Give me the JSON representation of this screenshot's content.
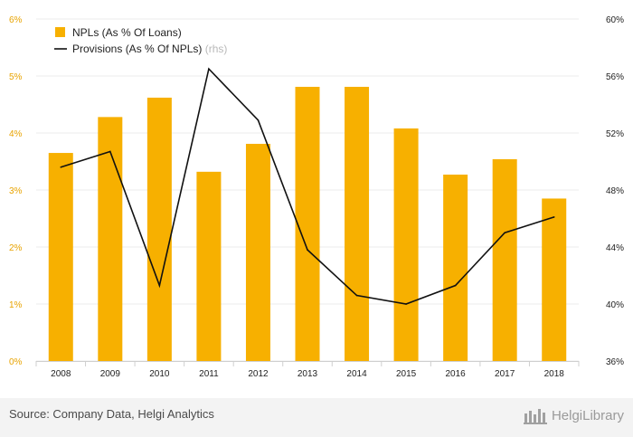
{
  "chart_data": {
    "type": "bar+line",
    "categories": [
      "2008",
      "2009",
      "2010",
      "2011",
      "2012",
      "2013",
      "2014",
      "2015",
      "2016",
      "2017",
      "2018"
    ],
    "series": [
      {
        "name": "NPLs (As % Of Loans)",
        "type": "bar",
        "axis": "left",
        "values": [
          3.65,
          4.28,
          4.62,
          3.32,
          3.81,
          4.81,
          4.81,
          4.08,
          3.27,
          3.54,
          2.85
        ],
        "color": "#f7b000"
      },
      {
        "name": "Provisions (As % Of NPLs)",
        "type": "line",
        "axis": "right",
        "values": [
          49.6,
          50.7,
          41.3,
          56.5,
          52.9,
          43.8,
          40.6,
          40.0,
          41.3,
          45.0,
          46.1
        ],
        "color": "#111111"
      }
    ],
    "legend_suffix": "(rhs)",
    "left_axis": {
      "ticks": [
        "0%",
        "1%",
        "2%",
        "3%",
        "4%",
        "5%",
        "6%"
      ],
      "min": 0,
      "max": 6
    },
    "right_axis": {
      "ticks": [
        "36%",
        "40%",
        "44%",
        "48%",
        "52%",
        "56%",
        "60%"
      ],
      "min": 36,
      "max": 60
    },
    "legend_position": "top-left"
  },
  "footer": {
    "source": "Source: Company Data, Helgi Analytics",
    "brand": "HelgiLibrary"
  }
}
